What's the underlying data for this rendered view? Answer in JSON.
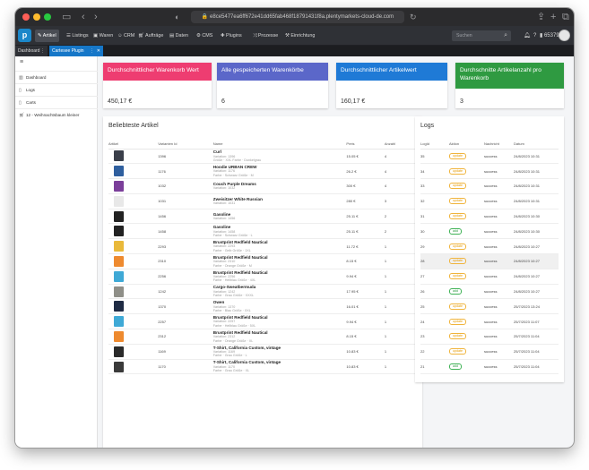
{
  "browser": {
    "url": "e8ce5477ea6ff672e41dd65fab468f18791431f8a.plentymarkets-cloud-de.com"
  },
  "nav": {
    "items": [
      {
        "label": "Artikel",
        "icon": "tag-icon",
        "active": true
      },
      {
        "label": "Listings",
        "icon": "listings-icon",
        "active": false
      },
      {
        "label": "Waren",
        "icon": "box-icon",
        "active": false
      },
      {
        "label": "CRM",
        "icon": "users-icon",
        "active": false
      },
      {
        "label": "Aufträge",
        "icon": "cart-icon",
        "active": false
      },
      {
        "label": "Daten",
        "icon": "database-icon",
        "active": false
      },
      {
        "label": "CMS",
        "icon": "gear-icon",
        "active": false
      },
      {
        "label": "Plugins",
        "icon": "puzzle-icon",
        "active": false
      },
      {
        "label": "Prozesse",
        "icon": "process-icon",
        "active": false
      },
      {
        "label": "Einrichtung",
        "icon": "wrench-icon",
        "active": false
      }
    ],
    "search_placeholder": "Suchen",
    "account_id": "65379"
  },
  "tabs": [
    {
      "label": "Dashboard"
    },
    {
      "label": "Cartesee Plugin"
    }
  ],
  "sidebar": {
    "items": [
      {
        "label": "Dashboard",
        "icon": "chart-icon"
      },
      {
        "label": "Logs",
        "icon": "document-icon"
      },
      {
        "label": "Carts",
        "icon": "document-icon"
      },
      {
        "label": "12 - Weihnachtsbaum kleiner",
        "icon": "cart-icon"
      }
    ]
  },
  "kpis": [
    {
      "title": "Durchschnittlicher Warenkorb Wert",
      "value": "450,17 €",
      "color": "#ee3d71"
    },
    {
      "title": "Alle gespeicherten Warenkörbe",
      "value": "6",
      "color": "#5b67c9"
    },
    {
      "title": "Durchschnittlicher Artikelwert",
      "value": "160,17 €",
      "color": "#1f7ad6"
    },
    {
      "title": "Durchschnitte Artikelanzahl pro Warenkorb",
      "value": "3",
      "color": "#2f9a41"
    }
  ],
  "articles": {
    "title": "Beliebteste Artikel",
    "columns": [
      "Artikel",
      "Varianten Id",
      "Name",
      "Preis",
      "Anzahl"
    ],
    "rows": [
      {
        "thumb": "#3a3f4a",
        "variant_id": "1396",
        "name": "Curl",
        "sub1": "Variation: 1396",
        "sub2": "Größe · XXL Farbe · Dunkelgrau",
        "price": "15.05 €",
        "count": "4"
      },
      {
        "thumb": "#2f5f9e",
        "variant_id": "1176",
        "name": "Hoodie URBAN CREW",
        "sub1": "Variation: 1176",
        "sub2": "Farbe · Schwarz Größe · M",
        "price": "26.2 €",
        "count": "4"
      },
      {
        "thumb": "#7b3f9a",
        "variant_id": "1032",
        "name": "Couch Purple Dreams",
        "sub1": "Variation: 1032",
        "sub2": "",
        "price": "300 €",
        "count": "4"
      },
      {
        "thumb": "#e8e8e8",
        "variant_id": "1031",
        "name": "Zweisitzer White Russian",
        "sub1": "Variation: 1031",
        "sub2": "",
        "price": "280 €",
        "count": "3"
      },
      {
        "thumb": "#222222",
        "variant_id": "1456",
        "name": "Gasoline",
        "sub1": "Variation: 1456",
        "sub2": "",
        "price": "25.11 €",
        "count": "2"
      },
      {
        "thumb": "#222222",
        "variant_id": "1458",
        "name": "Gasoline",
        "sub1": "Variation: 1458",
        "sub2": "Farbe · Schwarz Größe · L",
        "price": "25.11 €",
        "count": "2"
      },
      {
        "thumb": "#e9b93a",
        "variant_id": "2293",
        "name": "Brustprint Redfield Nautical",
        "sub1": "Variation: 2293",
        "sub2": "Farbe · Gelb Größe · 1XL",
        "price": "11.72 €",
        "count": "1"
      },
      {
        "thumb": "#ee8a2f",
        "variant_id": "2310",
        "name": "Brustprint Redfield Nautical",
        "sub1": "Variation: 2310",
        "sub2": "Farbe · Orange Größe · M",
        "price": "8.15 €",
        "count": "1"
      },
      {
        "thumb": "#3fa9d6",
        "variant_id": "2256",
        "name": "Brustprint Redfield Nautical",
        "sub1": "Variation: 2256",
        "sub2": "Farbe · Hellblau Größe · 4XL",
        "price": "9.94 €",
        "count": "1"
      },
      {
        "thumb": "#8f8f88",
        "variant_id": "1242",
        "name": "Cargo-Sweatbermuda",
        "sub1": "Variation: 1242",
        "sub2": "Farbe · Grau Größe · XXXL",
        "price": "17.95 €",
        "count": "1"
      },
      {
        "thumb": "#1f2b44",
        "variant_id": "1370",
        "name": "Owen",
        "sub1": "Variation: 1370",
        "sub2": "Farbe · Blau Größe · XXL",
        "price": "16.01 €",
        "count": "1"
      },
      {
        "thumb": "#3fa9d6",
        "variant_id": "2257",
        "name": "Brustprint Redfield Nautical",
        "sub1": "Variation: 2257",
        "sub2": "Farbe · Hellblau Größe · 5XL",
        "price": "9.94 €",
        "count": "1"
      },
      {
        "thumb": "#ee8a2f",
        "variant_id": "2312",
        "name": "Brustprint Redfield Nautical",
        "sub1": "Variation: 2312",
        "sub2": "Farbe · Orange Größe · XL",
        "price": "8.15 €",
        "count": "1"
      },
      {
        "thumb": "#2a2a2a",
        "variant_id": "1169",
        "name": "T-Shirt, California Custom, vintage",
        "sub1": "Variation: 1169",
        "sub2": "Farbe · Grau Größe · L",
        "price": "10.83 €",
        "count": "1"
      },
      {
        "thumb": "#3a3a3a",
        "variant_id": "1170",
        "name": "T-Shirt, California Custom, vintage",
        "sub1": "Variation: 1170",
        "sub2": "Farbe · Grau Größe · XL",
        "price": "10.83 €",
        "count": "1"
      }
    ]
  },
  "logs": {
    "title": "Logs",
    "columns": [
      "LogId",
      "Aktion",
      "Nachricht",
      "Datum"
    ],
    "rows": [
      {
        "id": "35",
        "action": "update",
        "message": "success",
        "date": "24/8/2023 10:31"
      },
      {
        "id": "34",
        "action": "update",
        "message": "success",
        "date": "24/8/2023 10:31"
      },
      {
        "id": "33",
        "action": "update",
        "message": "success",
        "date": "24/8/2023 10:31"
      },
      {
        "id": "32",
        "action": "update",
        "message": "success",
        "date": "24/8/2023 10:31"
      },
      {
        "id": "31",
        "action": "update",
        "message": "success",
        "date": "24/8/2023 10:30"
      },
      {
        "id": "30",
        "action": "add",
        "message": "success",
        "date": "24/8/2023 10:30"
      },
      {
        "id": "29",
        "action": "update",
        "message": "success",
        "date": "24/8/2023 10:27"
      },
      {
        "id": "28",
        "action": "update",
        "message": "success",
        "date": "24/8/2023 10:27"
      },
      {
        "id": "27",
        "action": "update",
        "message": "success",
        "date": "24/8/2023 10:27"
      },
      {
        "id": "26",
        "action": "add",
        "message": "success",
        "date": "24/8/2023 10:27"
      },
      {
        "id": "25",
        "action": "update",
        "message": "success",
        "date": "25/7/2023 13:24"
      },
      {
        "id": "24",
        "action": "update",
        "message": "success",
        "date": "25/7/2023 11:07"
      },
      {
        "id": "23",
        "action": "update",
        "message": "success",
        "date": "25/7/2023 11:04"
      },
      {
        "id": "22",
        "action": "update",
        "message": "success",
        "date": "25/7/2023 11:04"
      },
      {
        "id": "21",
        "action": "add",
        "message": "success",
        "date": "25/7/2023 11:04"
      }
    ]
  }
}
